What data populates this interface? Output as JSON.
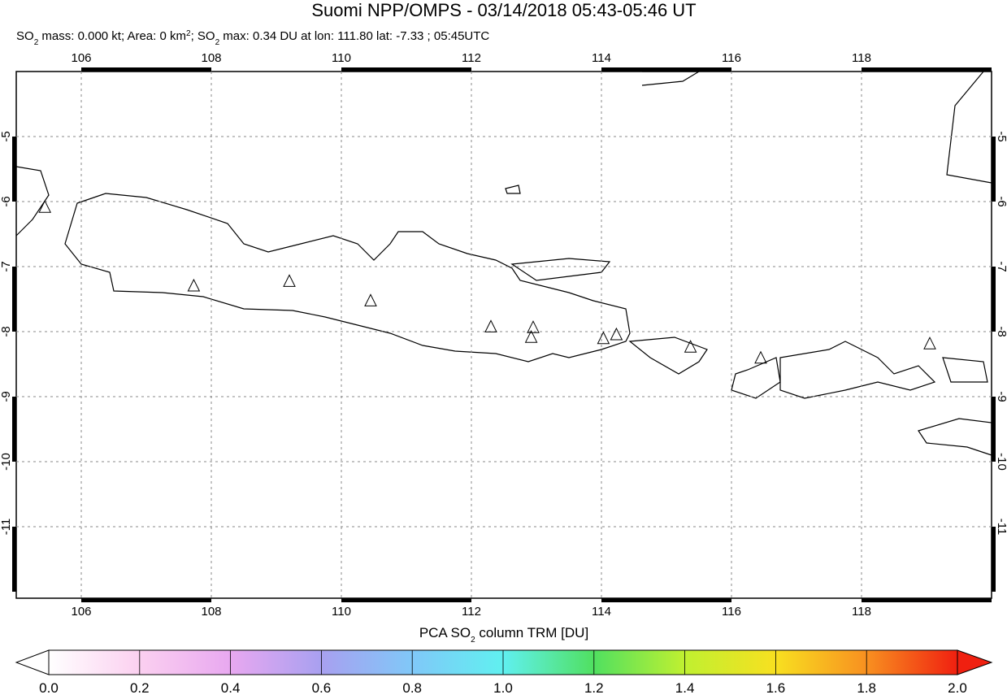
{
  "chart_data": {
    "type": "map",
    "title": "Suomi NPP/OMPS - 03/14/2018 05:43-05:46 UT",
    "subtitle_parts": [
      {
        "text": "SO"
      },
      {
        "text": "2",
        "script": "sub"
      },
      {
        "text": " mass: 0.000 kt; Area: 0 km"
      },
      {
        "text": "2",
        "script": "super"
      },
      {
        "text": "; SO"
      },
      {
        "text": "2",
        "script": "sub"
      },
      {
        "text": " max: 0.34 DU at lon: 111.80 lat: -7.33 ; 05:45UTC"
      }
    ],
    "xlim": [
      105,
      120
    ],
    "ylim": [
      -12.1,
      -4
    ],
    "xticks": [
      106,
      108,
      110,
      112,
      114,
      116,
      118
    ],
    "yticks": [
      -5,
      -6,
      -7,
      -8,
      -9,
      -10,
      -11
    ],
    "grid": true,
    "volcanoes": {
      "lon": [
        105.44,
        107.73,
        109.2,
        110.45,
        112.3,
        112.95,
        112.92,
        114.03,
        114.23,
        115.37,
        116.45,
        119.05
      ],
      "lat": [
        -6.09,
        -7.3,
        -7.23,
        -7.53,
        -7.93,
        -7.94,
        -8.09,
        -8.11,
        -8.05,
        -8.24,
        -8.41,
        -8.19
      ]
    },
    "colorbar_title_parts": [
      {
        "text": "PCA SO"
      },
      {
        "text": "2",
        "script": "sub"
      },
      {
        "text": " column TRM [DU]"
      }
    ],
    "colorbar_lim": [
      0,
      2
    ],
    "colorbar_ticks": [
      {
        "value": 0,
        "label": "0.0"
      },
      0.2,
      0.4,
      0.6,
      0.8,
      {
        "value": 1,
        "label": "1.0"
      },
      1.2,
      1.4,
      1.6,
      1.8,
      {
        "value": 2,
        "label": "2.0"
      }
    ],
    "colorbar_colors": [
      "#ffffff",
      "#fbd0f0",
      "#e8a8f0",
      "#a8a0f0",
      "#80c8f8",
      "#60f0f0",
      "#50e060",
      "#c0f030",
      "#f8e020",
      "#f89020",
      "#f02010"
    ]
  }
}
